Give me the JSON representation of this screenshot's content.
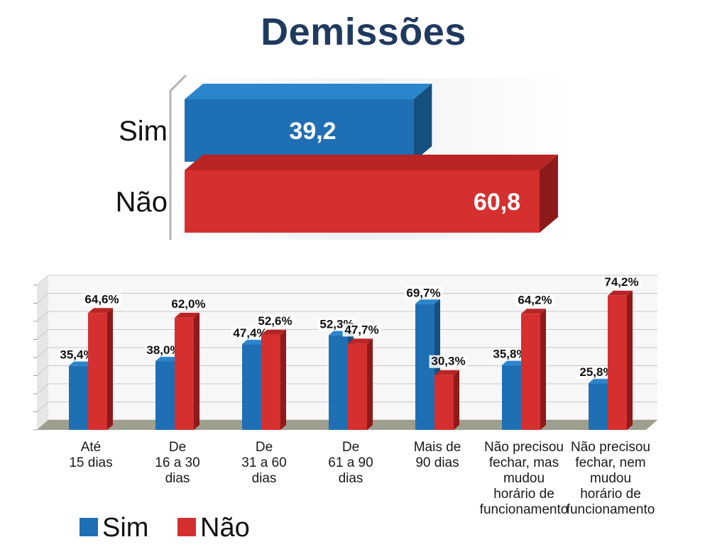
{
  "title": "Demissões",
  "colors": {
    "sim": "#1f6fb5",
    "sim_side": "#15507f",
    "sim_top": "#2a86cc",
    "nao": "#d62f2f",
    "nao_side": "#8e1a1a",
    "nao_top": "#b92424",
    "title": "#1f3a5f",
    "floor": "#9e9e8e"
  },
  "chart_data": [
    {
      "type": "bar",
      "orientation": "horizontal",
      "title": "Demissões",
      "categories": [
        "Sim",
        "Não"
      ],
      "values": [
        39.2,
        60.8
      ],
      "value_labels": [
        "39,2",
        "60,8"
      ],
      "xlim": [
        0,
        60.8
      ]
    },
    {
      "type": "bar",
      "orientation": "vertical",
      "categories": [
        [
          "Até",
          "15 dias"
        ],
        [
          "De",
          "16 a 30",
          "dias"
        ],
        [
          "De",
          "31 a 60",
          "dias"
        ],
        [
          "De",
          "61 a 90",
          "dias"
        ],
        [
          "Mais de",
          "90 dias"
        ],
        [
          "Não precisou",
          "fechar, mas",
          "mudou",
          "horário de",
          "funcionamento"
        ],
        [
          "Não precisou",
          "fechar, nem",
          "mudou",
          "horário de",
          "funcionamento"
        ]
      ],
      "series": [
        {
          "name": "Sim",
          "values": [
            35.4,
            38.0,
            47.4,
            52.3,
            69.7,
            35.8,
            25.8
          ],
          "labels": [
            "35,4%",
            "38,0%",
            "47,4%",
            "52,3%",
            "69,7%",
            "35,8%",
            "25,8%"
          ]
        },
        {
          "name": "Não",
          "values": [
            64.6,
            62.0,
            52.6,
            47.7,
            30.3,
            64.2,
            74.2
          ],
          "labels": [
            "64,6%",
            "62,0%",
            "52,6%",
            "47,7%",
            "30,3%",
            "64,2%",
            "74,2%"
          ]
        }
      ],
      "ylim": [
        0,
        80
      ],
      "grid": true,
      "legend": "bottom-left"
    }
  ]
}
